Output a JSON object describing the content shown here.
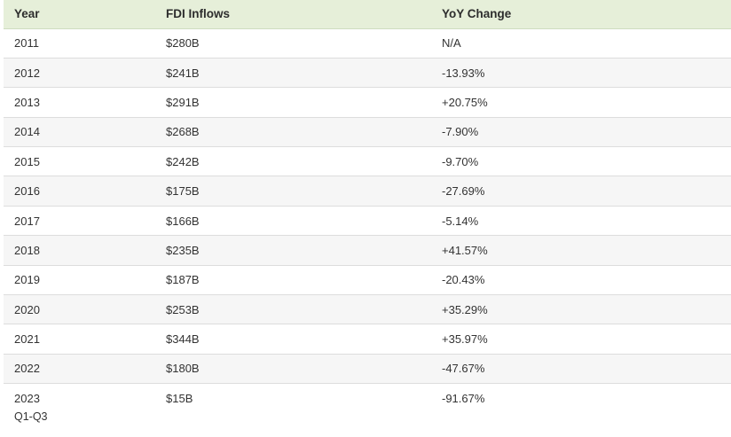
{
  "chart_data": {
    "type": "table",
    "columns": [
      "Year",
      "FDI Inflows",
      "YoY Change"
    ],
    "rows": [
      {
        "year": "2011",
        "year_sub": "",
        "fdi": "$280B",
        "yoy": "N/A"
      },
      {
        "year": "2012",
        "year_sub": "",
        "fdi": "$241B",
        "yoy": "-13.93%"
      },
      {
        "year": "2013",
        "year_sub": "",
        "fdi": "$291B",
        "yoy": "+20.75%"
      },
      {
        "year": "2014",
        "year_sub": "",
        "fdi": "$268B",
        "yoy": "-7.90%"
      },
      {
        "year": "2015",
        "year_sub": "",
        "fdi": "$242B",
        "yoy": "-9.70%"
      },
      {
        "year": "2016",
        "year_sub": "",
        "fdi": "$175B",
        "yoy": "-27.69%"
      },
      {
        "year": "2017",
        "year_sub": "",
        "fdi": "$166B",
        "yoy": "-5.14%"
      },
      {
        "year": "2018",
        "year_sub": "",
        "fdi": "$235B",
        "yoy": "+41.57%"
      },
      {
        "year": "2019",
        "year_sub": "",
        "fdi": "$187B",
        "yoy": "-20.43%"
      },
      {
        "year": "2020",
        "year_sub": "",
        "fdi": "$253B",
        "yoy": "+35.29%"
      },
      {
        "year": "2021",
        "year_sub": "",
        "fdi": "$344B",
        "yoy": "+35.97%"
      },
      {
        "year": "2022",
        "year_sub": "",
        "fdi": "$180B",
        "yoy": "-47.67%"
      },
      {
        "year": "2023",
        "year_sub": "Q1-Q3",
        "fdi": "$15B",
        "yoy": "-91.67%"
      }
    ],
    "colors": {
      "header_background": "#e6efd9",
      "alt_row_background": "#f6f6f6",
      "row_divider": "#dddddd"
    }
  }
}
